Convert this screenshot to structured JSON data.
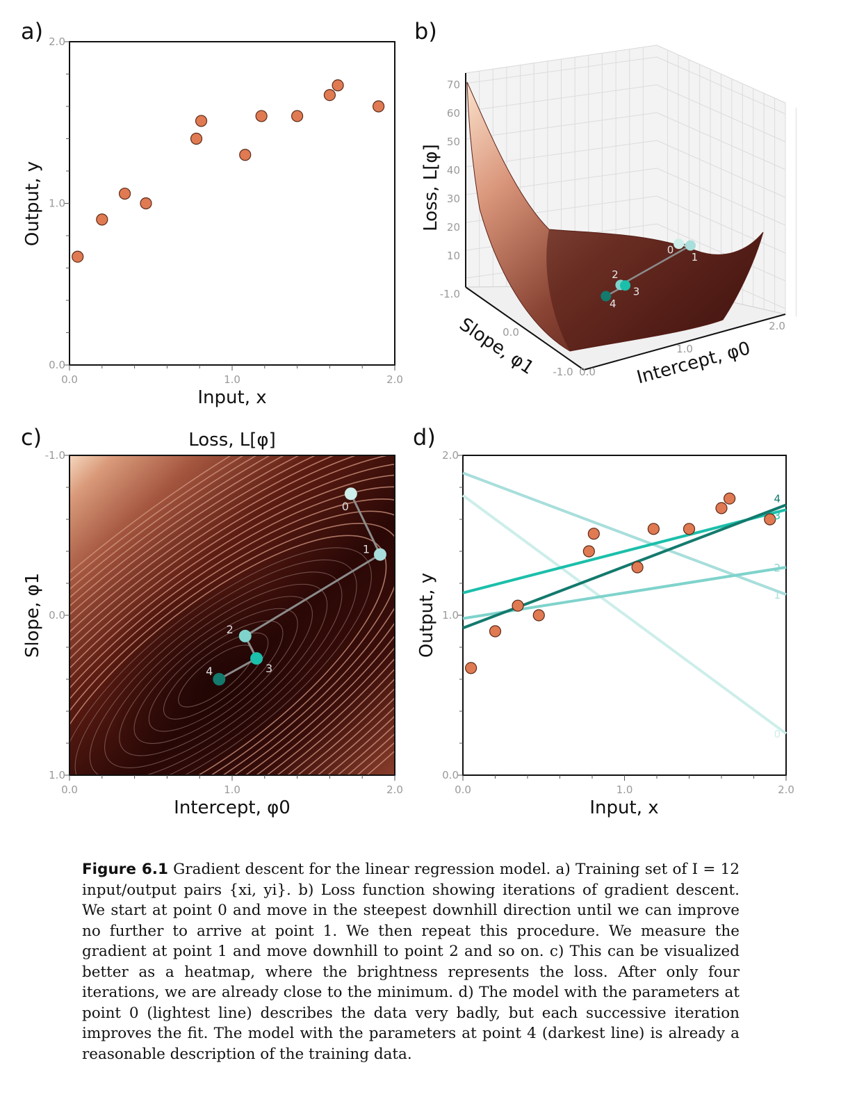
{
  "panels": {
    "a": {
      "letter": "a)",
      "xlabel": "Input, x",
      "ylabel": "Output, y"
    },
    "b": {
      "letter": "b)",
      "xlabel": "Intercept, φ0",
      "ylabel": "Loss, L[φ]",
      "slope_label": "Slope, φ1"
    },
    "c": {
      "letter": "c)",
      "title": "Loss, L[φ]",
      "xlabel": "Intercept, φ0",
      "ylabel": "Slope, φ1"
    },
    "d": {
      "letter": "d)",
      "xlabel": "Input, x",
      "ylabel": "Output, y"
    }
  },
  "caption": {
    "label": "Figure 6.1",
    "text": "Gradient descent for the linear regression model. a) Training set of I = 12 input/output pairs {xi, yi}. b) Loss function showing iterations of gradient descent. We start at point 0 and move in the steepest downhill direction until we can improve no further to arrive at point 1. We then repeat this procedure. We measure the gradient at point 1 and move downhill to point 2 and so on. c) This can be visualized better as a heatmap, where the brightness represents the loss. After only four iterations, we are already close to the minimum. d) The model with the parameters at point 0 (lightest line) describes the data very badly, but each successive iteration improves the fit. The model with the parameters at point 4 (darkest line) is already a reasonable description of the training data."
  },
  "colors": {
    "data_point": "#e07a52",
    "iter0": "#cdeeea",
    "iter1": "#a8dedb",
    "iter2": "#7fd3cc",
    "iter3": "#1bbfaa",
    "iter4": "#137a6d",
    "heat_dark": "#2a0806",
    "heat_light": "#f5d3b8"
  },
  "chart_data": [
    {
      "panel": "a",
      "type": "scatter",
      "xlabel": "Input, x",
      "ylabel": "Output, y",
      "xlim": [
        0.0,
        2.0
      ],
      "ylim": [
        0.0,
        2.0
      ],
      "xticks": [
        "0.0",
        "1.0",
        "2.0"
      ],
      "yticks": [
        "0.0",
        "1.0",
        "2.0"
      ],
      "x": [
        0.05,
        0.2,
        0.34,
        0.47,
        0.78,
        0.81,
        1.08,
        1.18,
        1.4,
        1.6,
        1.65,
        1.9
      ],
      "y": [
        0.67,
        0.9,
        1.06,
        1.0,
        1.4,
        1.51,
        1.3,
        1.54,
        1.54,
        1.67,
        1.73,
        1.6
      ]
    },
    {
      "panel": "b",
      "type": "surface",
      "zlabel": "Loss, L[φ]",
      "xlabel": "Intercept, φ0",
      "ylabel": "Slope, φ1",
      "zticks": [
        "10",
        "20",
        "30",
        "40",
        "50",
        "60",
        "70"
      ],
      "intercept_ticks": [
        "0.0",
        "1.0",
        "2.0"
      ],
      "slope_ticks": [
        "-1.0",
        "0.0",
        "-1.0"
      ],
      "iterations": [
        {
          "label": "0",
          "intercept": 1.73,
          "slope": -0.76
        },
        {
          "label": "1",
          "intercept": 1.91,
          "slope": -0.38
        },
        {
          "label": "2",
          "intercept": 1.08,
          "slope": 0.13
        },
        {
          "label": "3",
          "intercept": 1.15,
          "slope": 0.27
        },
        {
          "label": "4",
          "intercept": 0.92,
          "slope": 0.4
        }
      ]
    },
    {
      "panel": "c",
      "type": "heatmap",
      "title": "Loss, L[φ]",
      "xlabel": "Intercept, φ0",
      "ylabel": "Slope, φ1",
      "xlim": [
        0.0,
        2.0
      ],
      "ylim": [
        -1.0,
        1.0
      ],
      "xticks": [
        "0.0",
        "1.0",
        "2.0"
      ],
      "yticks": [
        "-1.0",
        "0.0",
        "1.0"
      ],
      "iterations": [
        {
          "label": "0",
          "intercept": 1.73,
          "slope": -0.76
        },
        {
          "label": "1",
          "intercept": 1.91,
          "slope": -0.38
        },
        {
          "label": "2",
          "intercept": 1.08,
          "slope": 0.13
        },
        {
          "label": "3",
          "intercept": 1.15,
          "slope": 0.27
        },
        {
          "label": "4",
          "intercept": 0.92,
          "slope": 0.4
        }
      ]
    },
    {
      "panel": "d",
      "type": "line",
      "xlabel": "Input, x",
      "ylabel": "Output, y",
      "xlim": [
        0.0,
        2.0
      ],
      "ylim": [
        0.0,
        2.0
      ],
      "xticks": [
        "0.0",
        "1.0",
        "2.0"
      ],
      "yticks": [
        "0.0",
        "1.0",
        "2.0"
      ],
      "points": {
        "x": [
          0.05,
          0.2,
          0.34,
          0.47,
          0.78,
          0.81,
          1.08,
          1.18,
          1.4,
          1.6,
          1.65,
          1.9
        ],
        "y": [
          0.67,
          0.9,
          1.06,
          1.0,
          1.4,
          1.51,
          1.3,
          1.54,
          1.54,
          1.67,
          1.73,
          1.6
        ]
      },
      "series": [
        {
          "name": "0",
          "intercept": 1.75,
          "slope": -0.745
        },
        {
          "name": "1",
          "intercept": 1.89,
          "slope": -0.38
        },
        {
          "name": "2",
          "intercept": 0.98,
          "slope": 0.16
        },
        {
          "name": "3",
          "intercept": 1.14,
          "slope": 0.26
        },
        {
          "name": "4",
          "intercept": 0.92,
          "slope": 0.385
        }
      ]
    }
  ]
}
